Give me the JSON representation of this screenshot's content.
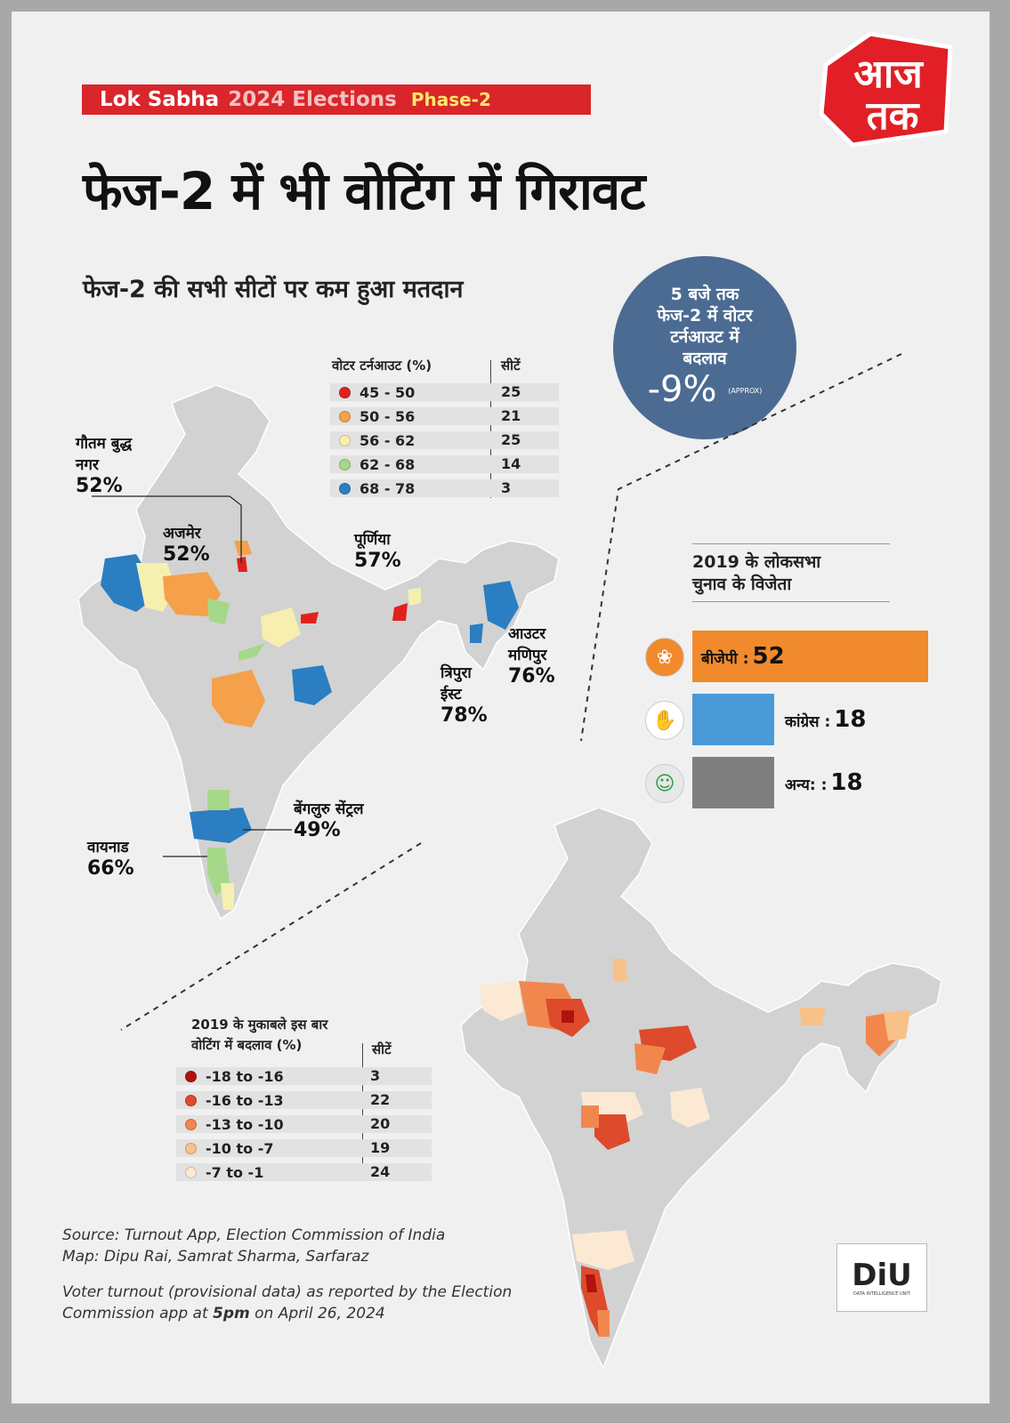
{
  "banner": {
    "part1": "Lok Sabha",
    "part2": "2024 Elections",
    "part3": "Phase-2"
  },
  "logo_text": "आज तक",
  "title": "फेज-2 में भी वोटिंग में गिरावट",
  "subtitle": "फेज-2 की सभी सीटों पर कम हुआ मतदान",
  "bubble": {
    "line1": "5 बजे तक",
    "line2": "फेज-2 में वोटर",
    "line3": "टर्नआउट में",
    "line4": "बदलाव",
    "value": "-9%",
    "note": "(APPROX)"
  },
  "turnout_legend": {
    "header": "वोटर टर्नआउट (%)",
    "seats_header": "सीटें",
    "rows": [
      {
        "range": "45 - 50",
        "seats": "25",
        "color": "#e0211d"
      },
      {
        "range": "50 - 56",
        "seats": "21",
        "color": "#f5a04a"
      },
      {
        "range": "56 - 62",
        "seats": "25",
        "color": "#f6efb0"
      },
      {
        "range": "62 - 68",
        "seats": "14",
        "color": "#a6d889"
      },
      {
        "range": "68 - 78",
        "seats": "3",
        "color": "#2a7ec1"
      }
    ]
  },
  "callouts": {
    "gbn": {
      "name1": "गौतम बुद्ध",
      "name2": "नगर",
      "pct": "52%"
    },
    "ajmer": {
      "name": "अजमेर",
      "pct": "52%"
    },
    "purnia": {
      "name": "पूर्णिया",
      "pct": "57%"
    },
    "outer_manipur": {
      "name1": "आउटर",
      "name2": "मणिपुर",
      "pct": "76%"
    },
    "tripura_east": {
      "name1": "त्रिपुरा",
      "name2": "ईस्ट",
      "pct": "78%"
    },
    "bengaluru": {
      "name": "बेंगलुरु सेंट्रल",
      "pct": "49%"
    },
    "wayanad": {
      "name": "वायनाड",
      "pct": "66%"
    }
  },
  "winners": {
    "heading1": "2019 के लोकसभा",
    "heading2": "चुनाव के विजेता",
    "parties": [
      {
        "label": "बीजेपी :",
        "value": "52",
        "color": "#f08a2c",
        "icon": "lotus-icon"
      },
      {
        "label": "कांग्रेस :",
        "value": "18",
        "color": "#4a9ad8",
        "icon": "hand-icon"
      },
      {
        "label": "अन्य: :",
        "value": "18",
        "color": "#7f7f7f",
        "icon": "person-icon"
      }
    ]
  },
  "change_legend": {
    "header1": "2019 के मुकाबले इस बार",
    "header2": "वोटिंग में बदलाव (%)",
    "seats_header": "सीटें",
    "rows": [
      {
        "range": "-18 to -16",
        "seats": "3",
        "color": "#b0120e"
      },
      {
        "range": "-16 to -13",
        "seats": "22",
        "color": "#de4a2c"
      },
      {
        "range": "-13 to -10",
        "seats": "20",
        "color": "#f2874e"
      },
      {
        "range": "-10 to -7",
        "seats": "19",
        "color": "#f8c18a"
      },
      {
        "range": "-7 to -1",
        "seats": "24",
        "color": "#fbe9d4"
      }
    ]
  },
  "source": {
    "line1": "Source: Turnout App, Election Commission of India",
    "line2": "Map: Dipu Rai, Samrat Sharma, Sarfaraz",
    "line3": "Voter turnout (provisional data) as reported by the Election",
    "line4a": "Commission app at ",
    "line4b": "5pm",
    "line4c": " on April 26, 2024"
  },
  "diu": {
    "mark": "DiU",
    "sub": "DATA INTELLIGENCE UNIT"
  }
}
